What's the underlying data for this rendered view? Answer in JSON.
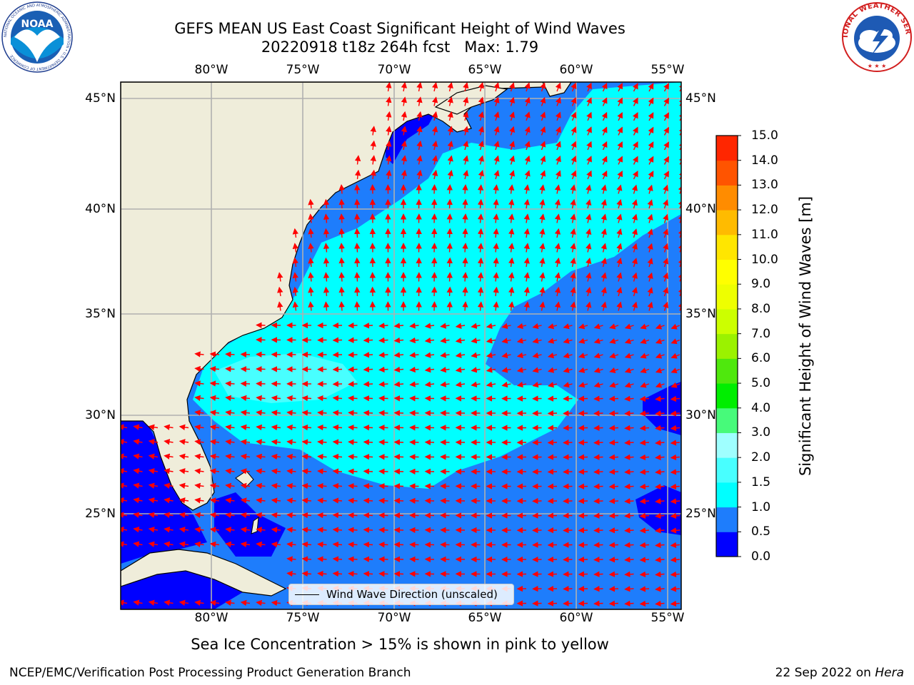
{
  "title_line1": "GEFS MEAN US East Coast Significant Height of Wind Waves",
  "title_line2": "20220918 t18z 264h fcst   Max: 1.79",
  "map": {
    "lon_ticks": [
      "80°W",
      "75°W",
      "70°W",
      "65°W",
      "60°W",
      "55°W"
    ],
    "lat_ticks": [
      "45°N",
      "40°N",
      "35°N",
      "30°N",
      "25°N"
    ],
    "legend_label": "Wind Wave Direction (unscaled)",
    "land_color": "#efedda",
    "arrow_color": "#ff0000",
    "grid_color": "#b0b0b0"
  },
  "colorbar": {
    "label": "Significant Height of Wind Waves [m]",
    "ticks": [
      "0.0",
      "0.5",
      "1.0",
      "1.5",
      "2.0",
      "3.0",
      "4.0",
      "5.0",
      "6.0",
      "7.0",
      "8.0",
      "9.0",
      "10.0",
      "11.0",
      "12.0",
      "13.0",
      "14.0",
      "15.0"
    ],
    "colors": [
      "#0000ff",
      "#1e7dfc",
      "#00ffff",
      "#48ffff",
      "#9fffff",
      "#47fa7a",
      "#00ee00",
      "#4fe80d",
      "#9bf200",
      "#ccff00",
      "#eeff00",
      "#ffff00",
      "#ffe600",
      "#ffbb00",
      "#ff8c00",
      "#ff5400",
      "#ff2600"
    ]
  },
  "subtitle": "Sea Ice Concentration > 15% is shown in pink to yellow",
  "footer_left": "NCEP/EMC/Verification Post Processing Product Generation Branch",
  "footer_date": "22 Sep 2022 on ",
  "footer_host": "Hera",
  "logos": {
    "noaa_text": "NOAA",
    "noaa_ring": "NATIONAL OCEANIC AND ATMOSPHERIC ADMINISTRATION • U.S. DEPARTMENT OF COMMERCE",
    "nws_ring": "NATIONAL WEATHER SERVICE"
  }
}
